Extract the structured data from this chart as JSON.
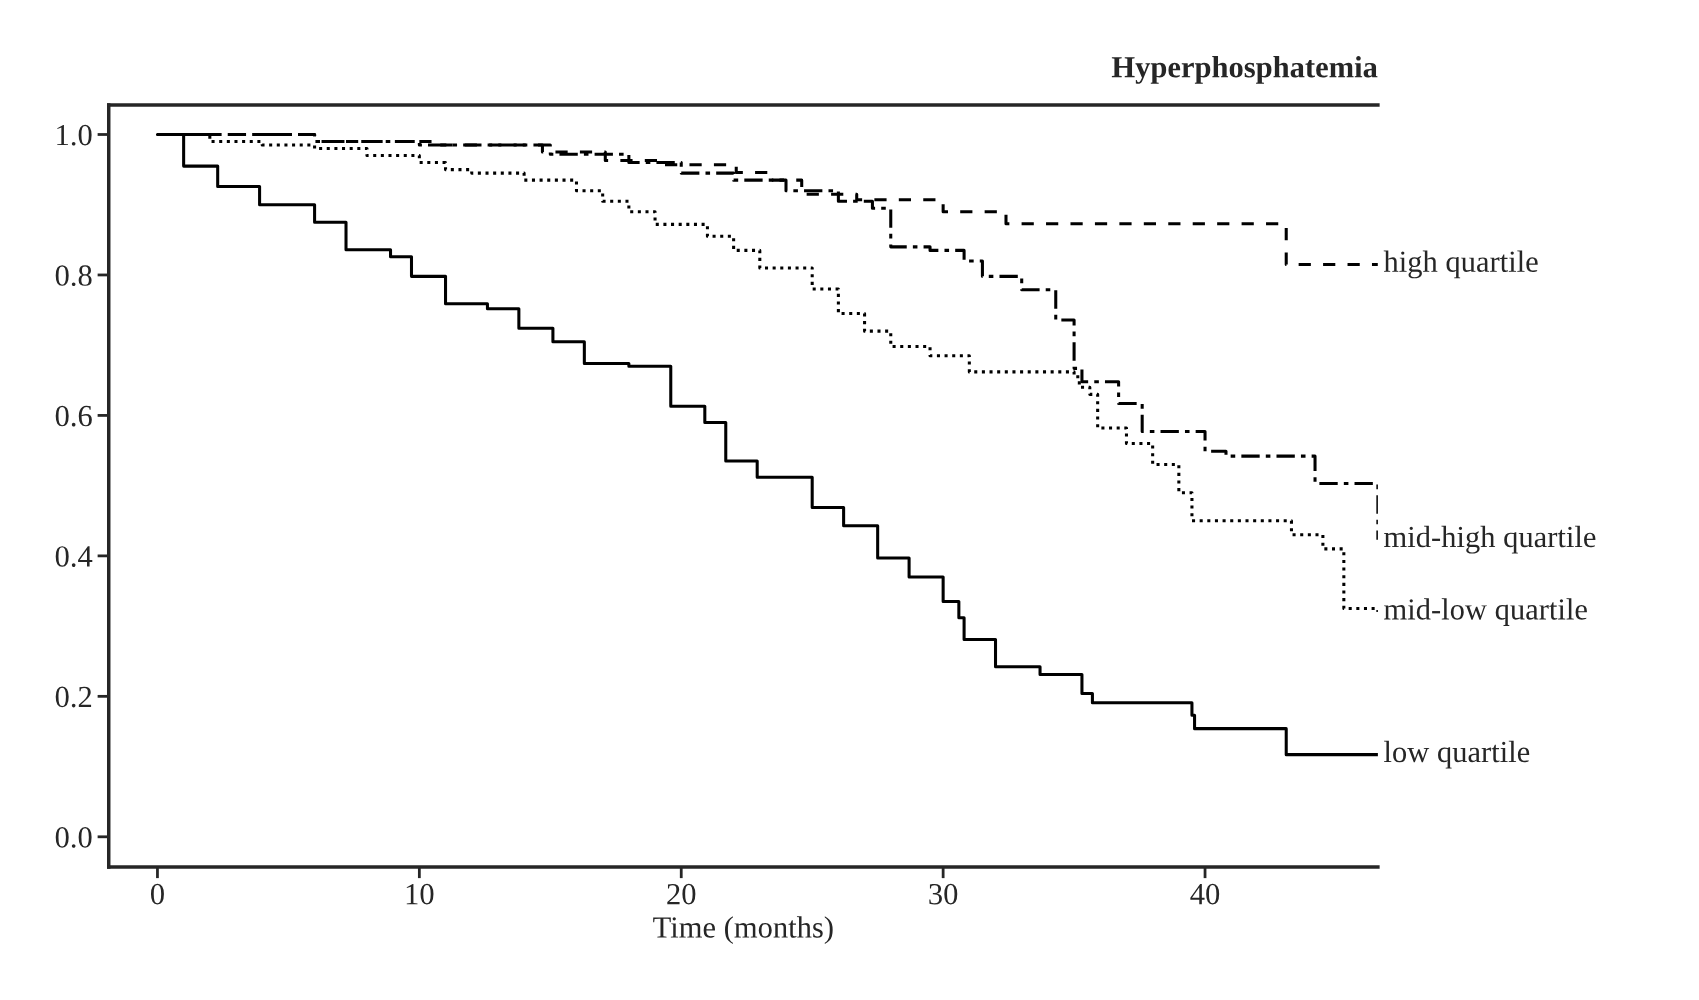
{
  "chart_data": {
    "type": "step",
    "title": "Hyperphosphatemia",
    "xlabel": "Time (months)",
    "xlim": [
      -1.86,
      46.6
    ],
    "ylim": [
      -0.043,
      1.042
    ],
    "xticks": [
      0,
      10,
      20,
      30,
      40
    ],
    "yticks": [
      {
        "value": 0,
        "label": "0.0"
      },
      {
        "value": 0.2,
        "label": "0.2"
      },
      {
        "value": 0.4,
        "label": "0.4"
      },
      {
        "value": 0.6,
        "label": "0.6"
      },
      {
        "value": 0.8,
        "label": "0.8"
      },
      {
        "value": 1,
        "label": "1.0"
      }
    ],
    "grid": false,
    "legend": false,
    "marker": "none",
    "series": [
      {
        "name": "high quartile",
        "color": "#000000",
        "line_style": "dashed",
        "x": [
          0,
          6,
          10.5,
          14.7,
          17.1,
          19.2,
          22.1,
          23.3,
          24.6,
          26.7,
          28.7,
          30,
          32.4,
          43.1,
          46.6
        ],
        "values": [
          1.0,
          0.99,
          0.985,
          0.975,
          0.963,
          0.957,
          0.946,
          0.935,
          0.915,
          0.907,
          0.907,
          0.89,
          0.873,
          0.815,
          0.815
        ]
      },
      {
        "name": "mid-high quartile",
        "color": "#000000",
        "line_style": "dashdot",
        "x": [
          0,
          6,
          10,
          15,
          18,
          20,
          22,
          24,
          26,
          27.3,
          28,
          29.5,
          30.8,
          31.5,
          33,
          34.3,
          35,
          35.3,
          36.7,
          37.6,
          39.6,
          40,
          40.8,
          44.2,
          46.6
        ],
        "values": [
          1.0,
          0.99,
          0.985,
          0.972,
          0.96,
          0.945,
          0.935,
          0.92,
          0.905,
          0.895,
          0.84,
          0.835,
          0.82,
          0.798,
          0.779,
          0.736,
          0.667,
          0.648,
          0.617,
          0.577,
          0.577,
          0.549,
          0.542,
          0.503,
          0.423
        ]
      },
      {
        "name": "mid-low quartile",
        "color": "#000000",
        "line_style": "dotted",
        "x": [
          0,
          2,
          4,
          6,
          8,
          10,
          11,
          12,
          14,
          16,
          17,
          18,
          19,
          21,
          22,
          23,
          25,
          26,
          27,
          28,
          29.5,
          31,
          35,
          35.2,
          35.6,
          35.9,
          37,
          38,
          39,
          39.5,
          43.3,
          44.5,
          45.3,
          46.6
        ],
        "values": [
          1.0,
          0.99,
          0.985,
          0.98,
          0.97,
          0.96,
          0.95,
          0.945,
          0.935,
          0.92,
          0.905,
          0.89,
          0.872,
          0.855,
          0.835,
          0.81,
          0.78,
          0.745,
          0.72,
          0.698,
          0.685,
          0.662,
          0.655,
          0.64,
          0.63,
          0.582,
          0.56,
          0.53,
          0.49,
          0.45,
          0.43,
          0.41,
          0.325,
          0.32
        ]
      },
      {
        "name": "low quartile",
        "color": "#000000",
        "line_style": "solid",
        "x": [
          0,
          1,
          2.3,
          3.9,
          6,
          7.2,
          8.9,
          9.7,
          11,
          12.6,
          13.8,
          15.1,
          16.3,
          18,
          19.6,
          20.9,
          21.7,
          22.9,
          25,
          26.2,
          27.5,
          28.7,
          30,
          30.6,
          30.8,
          32,
          33.7,
          35.3,
          35.7,
          39.5,
          39.6,
          43.1,
          46.6
        ],
        "values": [
          1.0,
          0.955,
          0.926,
          0.9,
          0.875,
          0.836,
          0.826,
          0.798,
          0.759,
          0.752,
          0.724,
          0.705,
          0.674,
          0.67,
          0.613,
          0.59,
          0.535,
          0.512,
          0.469,
          0.443,
          0.397,
          0.37,
          0.335,
          0.312,
          0.281,
          0.242,
          0.231,
          0.204,
          0.191,
          0.173,
          0.154,
          0.117,
          0.117
        ]
      }
    ]
  }
}
